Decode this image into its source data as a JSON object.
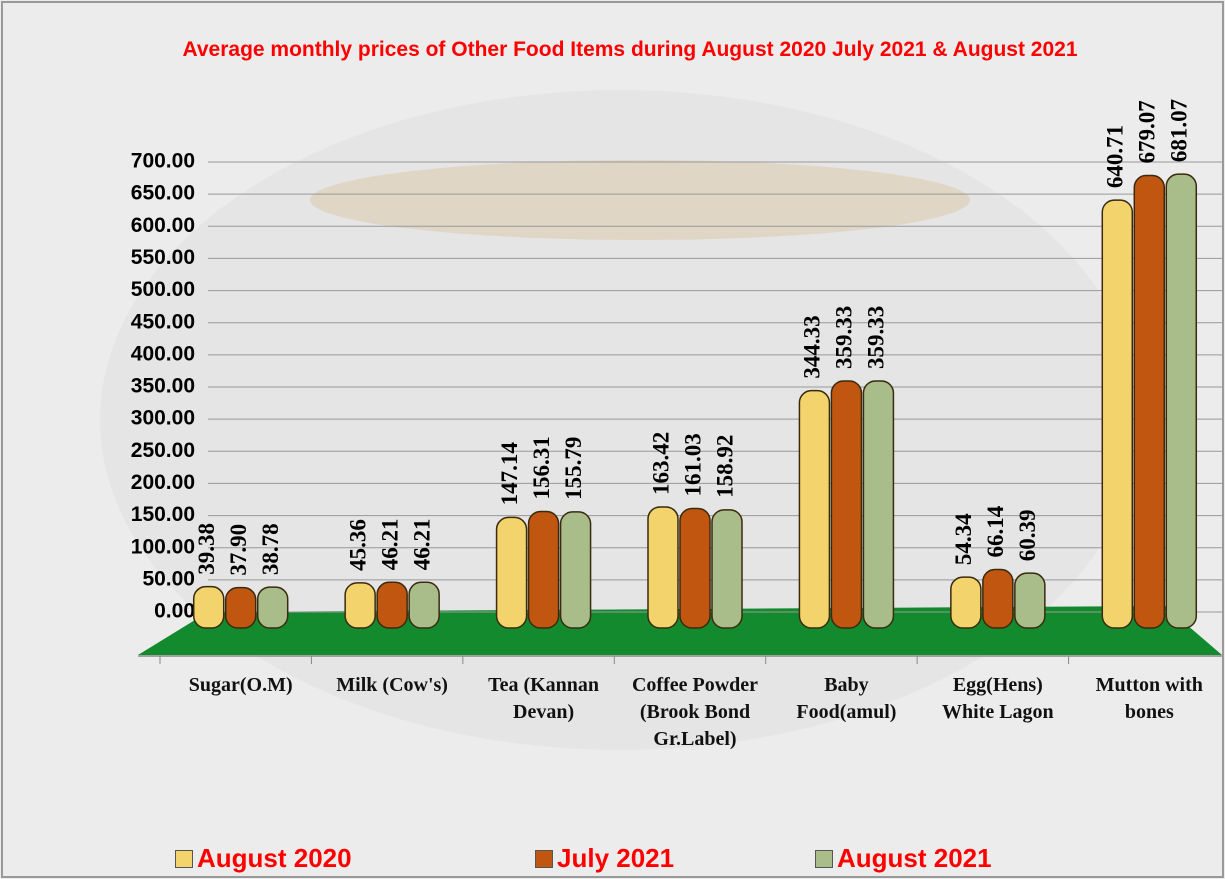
{
  "chart_data": {
    "type": "bar",
    "title": "Average monthly prices of Other Food Items during  August 2020  July 2021 & August 2021",
    "categories": [
      "Sugar(O.M)",
      "Milk (Cow's)",
      "Tea (Kannan Devan)",
      "Coffee Powder (Brook Bond Gr.Label)",
      "Baby Food(amul)",
      "Egg(Hens) White Lagon",
      "Mutton with bones"
    ],
    "series": [
      {
        "name": "August 2020",
        "color": "#f3d36b",
        "values": [
          39.38,
          45.36,
          147.14,
          163.42,
          344.33,
          54.34,
          640.71
        ],
        "value_labels": [
          "39.38",
          "45.36",
          "147.14",
          "163.42",
          "344.33",
          "54.34",
          "640.71"
        ]
      },
      {
        "name": "July 2021",
        "color": "#c0560f",
        "values": [
          37.9,
          46.21,
          156.31,
          161.03,
          359.33,
          66.14,
          679.07
        ],
        "value_labels": [
          "37.90",
          "46.21",
          "156.31",
          "161.03",
          "359.33",
          "66.14",
          "679.07"
        ]
      },
      {
        "name": "August 2021",
        "color": "#a8bd8a",
        "values": [
          38.78,
          46.21,
          155.79,
          158.92,
          359.33,
          60.39,
          681.07
        ],
        "value_labels": [
          "38.78",
          "46.21",
          "155.79",
          "158.92",
          "359.33",
          "60.39",
          "681.07"
        ]
      }
    ],
    "ylim": [
      0,
      700
    ],
    "yticks": [
      {
        "value": 0,
        "label": "0.00"
      },
      {
        "value": 50,
        "label": "50.00"
      },
      {
        "value": 100,
        "label": "100.00"
      },
      {
        "value": 150,
        "label": "150.00"
      },
      {
        "value": 200,
        "label": "200.00"
      },
      {
        "value": 250,
        "label": "250.00"
      },
      {
        "value": 300,
        "label": "300.00"
      },
      {
        "value": 350,
        "label": "350.00"
      },
      {
        "value": 400,
        "label": "400.00"
      },
      {
        "value": 450,
        "label": "450.00"
      },
      {
        "value": 500,
        "label": "500.00"
      },
      {
        "value": 550,
        "label": "550.00"
      },
      {
        "value": 600,
        "label": "600.00"
      },
      {
        "value": 650,
        "label": "650.00"
      },
      {
        "value": 700,
        "label": "700.00"
      }
    ],
    "grid": true,
    "legend": "bottom"
  }
}
